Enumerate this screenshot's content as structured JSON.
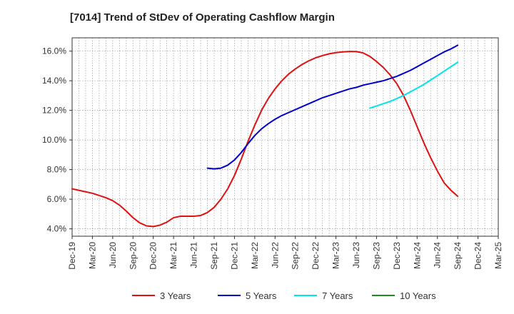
{
  "chart_data": {
    "type": "line",
    "title": "[7014]  Trend of StDev of Operating Cashflow Margin",
    "xlabel": "",
    "ylabel": "",
    "ylim": [
      3.5,
      16.9
    ],
    "y_ticks": [
      4.0,
      6.0,
      8.0,
      10.0,
      12.0,
      14.0,
      16.0
    ],
    "y_tick_labels": [
      "4.0%",
      "6.0%",
      "8.0%",
      "10.0%",
      "12.0%",
      "14.0%",
      "16.0%"
    ],
    "x_tick_labels": [
      "Dec-19",
      "Mar-20",
      "Jun-20",
      "Sep-20",
      "Dec-20",
      "Mar-21",
      "Jun-21",
      "Sep-21",
      "Dec-21",
      "Mar-22",
      "Jun-22",
      "Sep-22",
      "Dec-22",
      "Mar-23",
      "Jun-23",
      "Sep-23",
      "Dec-23",
      "Mar-24",
      "Jun-24",
      "Sep-24",
      "Dec-24",
      "Mar-25"
    ],
    "grid": true,
    "legend_position": "bottom",
    "series": [
      {
        "name": "3 Years",
        "color": "#dd1111",
        "x": [
          "Dec-19",
          "Mar-20",
          "Apr-20",
          "May-20",
          "Jun-20",
          "Jul-20",
          "Aug-20",
          "Sep-20",
          "Oct-20",
          "Nov-20",
          "Dec-20",
          "Jan-21",
          "Feb-21",
          "Mar-21",
          "Apr-21",
          "May-21",
          "Jun-21",
          "Jul-21",
          "Aug-21",
          "Sep-21",
          "Oct-21",
          "Nov-21",
          "Dec-21",
          "Jan-22",
          "Feb-22",
          "Mar-22",
          "Apr-22",
          "May-22",
          "Jun-22",
          "Jul-22",
          "Aug-22",
          "Sep-22",
          "Oct-22",
          "Nov-22",
          "Dec-22",
          "Jan-23",
          "Feb-23",
          "Mar-23",
          "Apr-23",
          "May-23",
          "Jun-23",
          "Jul-23",
          "Aug-23",
          "Sep-23",
          "Oct-23",
          "Nov-23",
          "Dec-23",
          "Jan-24",
          "Feb-24",
          "Mar-24",
          "Apr-24",
          "May-24",
          "Jun-24",
          "Jul-24",
          "Aug-24",
          "Sep-24"
        ],
        "values": [
          6.7,
          6.4,
          6.25,
          6.1,
          5.9,
          5.6,
          5.2,
          4.75,
          4.4,
          4.2,
          4.15,
          4.25,
          4.45,
          4.75,
          4.85,
          4.85,
          4.85,
          4.9,
          5.1,
          5.45,
          6.0,
          6.7,
          7.6,
          8.7,
          9.9,
          11.0,
          12.0,
          12.8,
          13.45,
          14.0,
          14.45,
          14.8,
          15.1,
          15.35,
          15.55,
          15.7,
          15.82,
          15.9,
          15.95,
          15.98,
          15.97,
          15.88,
          15.65,
          15.3,
          14.9,
          14.4,
          13.8,
          13.0,
          12.0,
          10.9,
          9.8,
          8.8,
          7.9,
          7.1,
          6.6,
          6.2
        ]
      },
      {
        "name": "5 Years",
        "color": "#0000cc",
        "x": [
          "Aug-21",
          "Sep-21",
          "Oct-21",
          "Nov-21",
          "Dec-21",
          "Jan-22",
          "Feb-22",
          "Mar-22",
          "Apr-22",
          "May-22",
          "Jun-22",
          "Jul-22",
          "Aug-22",
          "Sep-22",
          "Oct-22",
          "Nov-22",
          "Dec-22",
          "Jan-23",
          "Feb-23",
          "Mar-23",
          "Apr-23",
          "May-23",
          "Jun-23",
          "Jul-23",
          "Aug-23",
          "Sep-23",
          "Oct-23",
          "Nov-23",
          "Dec-23",
          "Jan-24",
          "Feb-24",
          "Mar-24",
          "Apr-24",
          "May-24",
          "Jun-24",
          "Jul-24",
          "Aug-24",
          "Sep-24"
        ],
        "values": [
          8.1,
          8.05,
          8.1,
          8.3,
          8.65,
          9.15,
          9.75,
          10.3,
          10.75,
          11.1,
          11.4,
          11.65,
          11.85,
          12.05,
          12.25,
          12.45,
          12.65,
          12.85,
          13.0,
          13.15,
          13.3,
          13.45,
          13.55,
          13.7,
          13.8,
          13.9,
          14.0,
          14.15,
          14.3,
          14.5,
          14.7,
          14.95,
          15.2,
          15.45,
          15.7,
          15.95,
          16.15,
          16.4
        ]
      },
      {
        "name": "7 Years",
        "color": "#00e5e5",
        "x": [
          "Aug-23",
          "Sep-23",
          "Oct-23",
          "Nov-23",
          "Dec-23",
          "Jan-24",
          "Feb-24",
          "Mar-24",
          "Apr-24",
          "May-24",
          "Jun-24",
          "Jul-24",
          "Aug-24",
          "Sep-24"
        ],
        "values": [
          12.15,
          12.3,
          12.45,
          12.6,
          12.8,
          13.0,
          13.25,
          13.5,
          13.75,
          14.05,
          14.35,
          14.65,
          14.95,
          15.25
        ]
      },
      {
        "name": "10 Years",
        "color": "#228b22",
        "x": [],
        "values": []
      }
    ]
  }
}
